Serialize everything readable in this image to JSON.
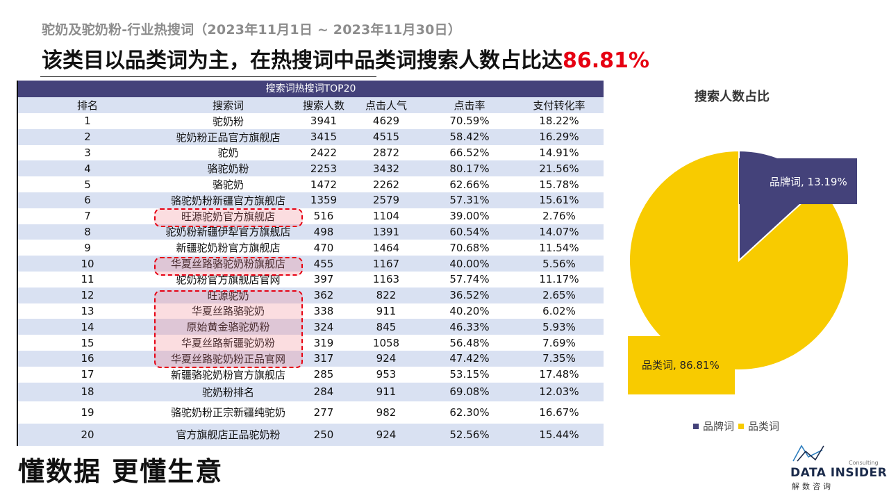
{
  "header": {
    "subtitle": "驼奶及驼奶粉-行业热搜词（2023年11月1日 ~ 2023年11月30日）",
    "headline_prefix": "该类目以品类词为主，在热搜词中品类词搜索人数占比达",
    "headline_value": "86.81%"
  },
  "table": {
    "banner": "搜索词热搜词TOP20",
    "columns": [
      "排名",
      "搜索词",
      "搜索人数",
      "点击人气",
      "点击率",
      "支付转化率"
    ],
    "rows": [
      [
        "1",
        "驼奶粉",
        "3941",
        "4629",
        "70.59%",
        "18.22%"
      ],
      [
        "2",
        "驼奶粉正品官方旗舰店",
        "3415",
        "4515",
        "58.42%",
        "16.29%"
      ],
      [
        "3",
        "驼奶",
        "2422",
        "2872",
        "66.52%",
        "14.91%"
      ],
      [
        "4",
        "骆驼奶粉",
        "2253",
        "3432",
        "80.17%",
        "21.56%"
      ],
      [
        "5",
        "骆驼奶",
        "1472",
        "2262",
        "62.66%",
        "15.78%"
      ],
      [
        "6",
        "骆驼奶粉新疆官方旗舰店",
        "1359",
        "2579",
        "57.31%",
        "15.61%"
      ],
      [
        "7",
        "旺源驼奶官方旗舰店",
        "516",
        "1104",
        "39.00%",
        "2.76%"
      ],
      [
        "8",
        "驼奶粉新疆伊犁官方旗舰店",
        "498",
        "1391",
        "60.54%",
        "14.07%"
      ],
      [
        "9",
        "新疆驼奶粉官方旗舰店",
        "470",
        "1464",
        "70.68%",
        "11.54%"
      ],
      [
        "10",
        "华夏丝路骆驼奶粉旗舰店",
        "455",
        "1167",
        "40.00%",
        "5.56%"
      ],
      [
        "11",
        "驼奶粉官方旗舰店官网",
        "397",
        "1163",
        "57.74%",
        "11.17%"
      ],
      [
        "12",
        "旺源驼奶",
        "362",
        "822",
        "36.52%",
        "2.65%"
      ],
      [
        "13",
        "华夏丝路骆驼奶",
        "338",
        "911",
        "40.20%",
        "6.02%"
      ],
      [
        "14",
        "原始黄金骆驼奶粉",
        "324",
        "845",
        "46.33%",
        "5.93%"
      ],
      [
        "15",
        "华夏丝路新疆驼奶粉",
        "319",
        "1058",
        "56.48%",
        "7.69%"
      ],
      [
        "16",
        "华夏丝路驼奶粉正品官网",
        "317",
        "924",
        "47.42%",
        "7.35%"
      ],
      [
        "17",
        "新疆骆驼奶粉官方旗舰店",
        "285",
        "953",
        "53.15%",
        "17.48%"
      ],
      [
        "18",
        "驼奶粉排名",
        "284",
        "911",
        "69.08%",
        "12.03%"
      ],
      [
        "19",
        "骆驼奶粉正宗新疆纯驼奶",
        "277",
        "982",
        "62.30%",
        "16.67%"
      ],
      [
        "20",
        "官方旗舰店正品驼奶粉",
        "250",
        "924",
        "52.56%",
        "15.44%"
      ]
    ]
  },
  "slogan": "懂数据 更懂生意",
  "chart_data": {
    "type": "pie",
    "title": "搜索人数占比",
    "series": [
      {
        "name": "品牌词",
        "value": 13.19,
        "label": "品牌词, 13.19%",
        "color": "#44427a"
      },
      {
        "name": "品类词",
        "value": 86.81,
        "label": "品类词, 86.81%",
        "color": "#f8cb00"
      }
    ],
    "legend": [
      "品牌词",
      "品类词"
    ],
    "legend_position": "bottom"
  },
  "logo": {
    "consulting": "Consulting",
    "brand": "DATA INSIDER",
    "cn": "解数咨询"
  }
}
